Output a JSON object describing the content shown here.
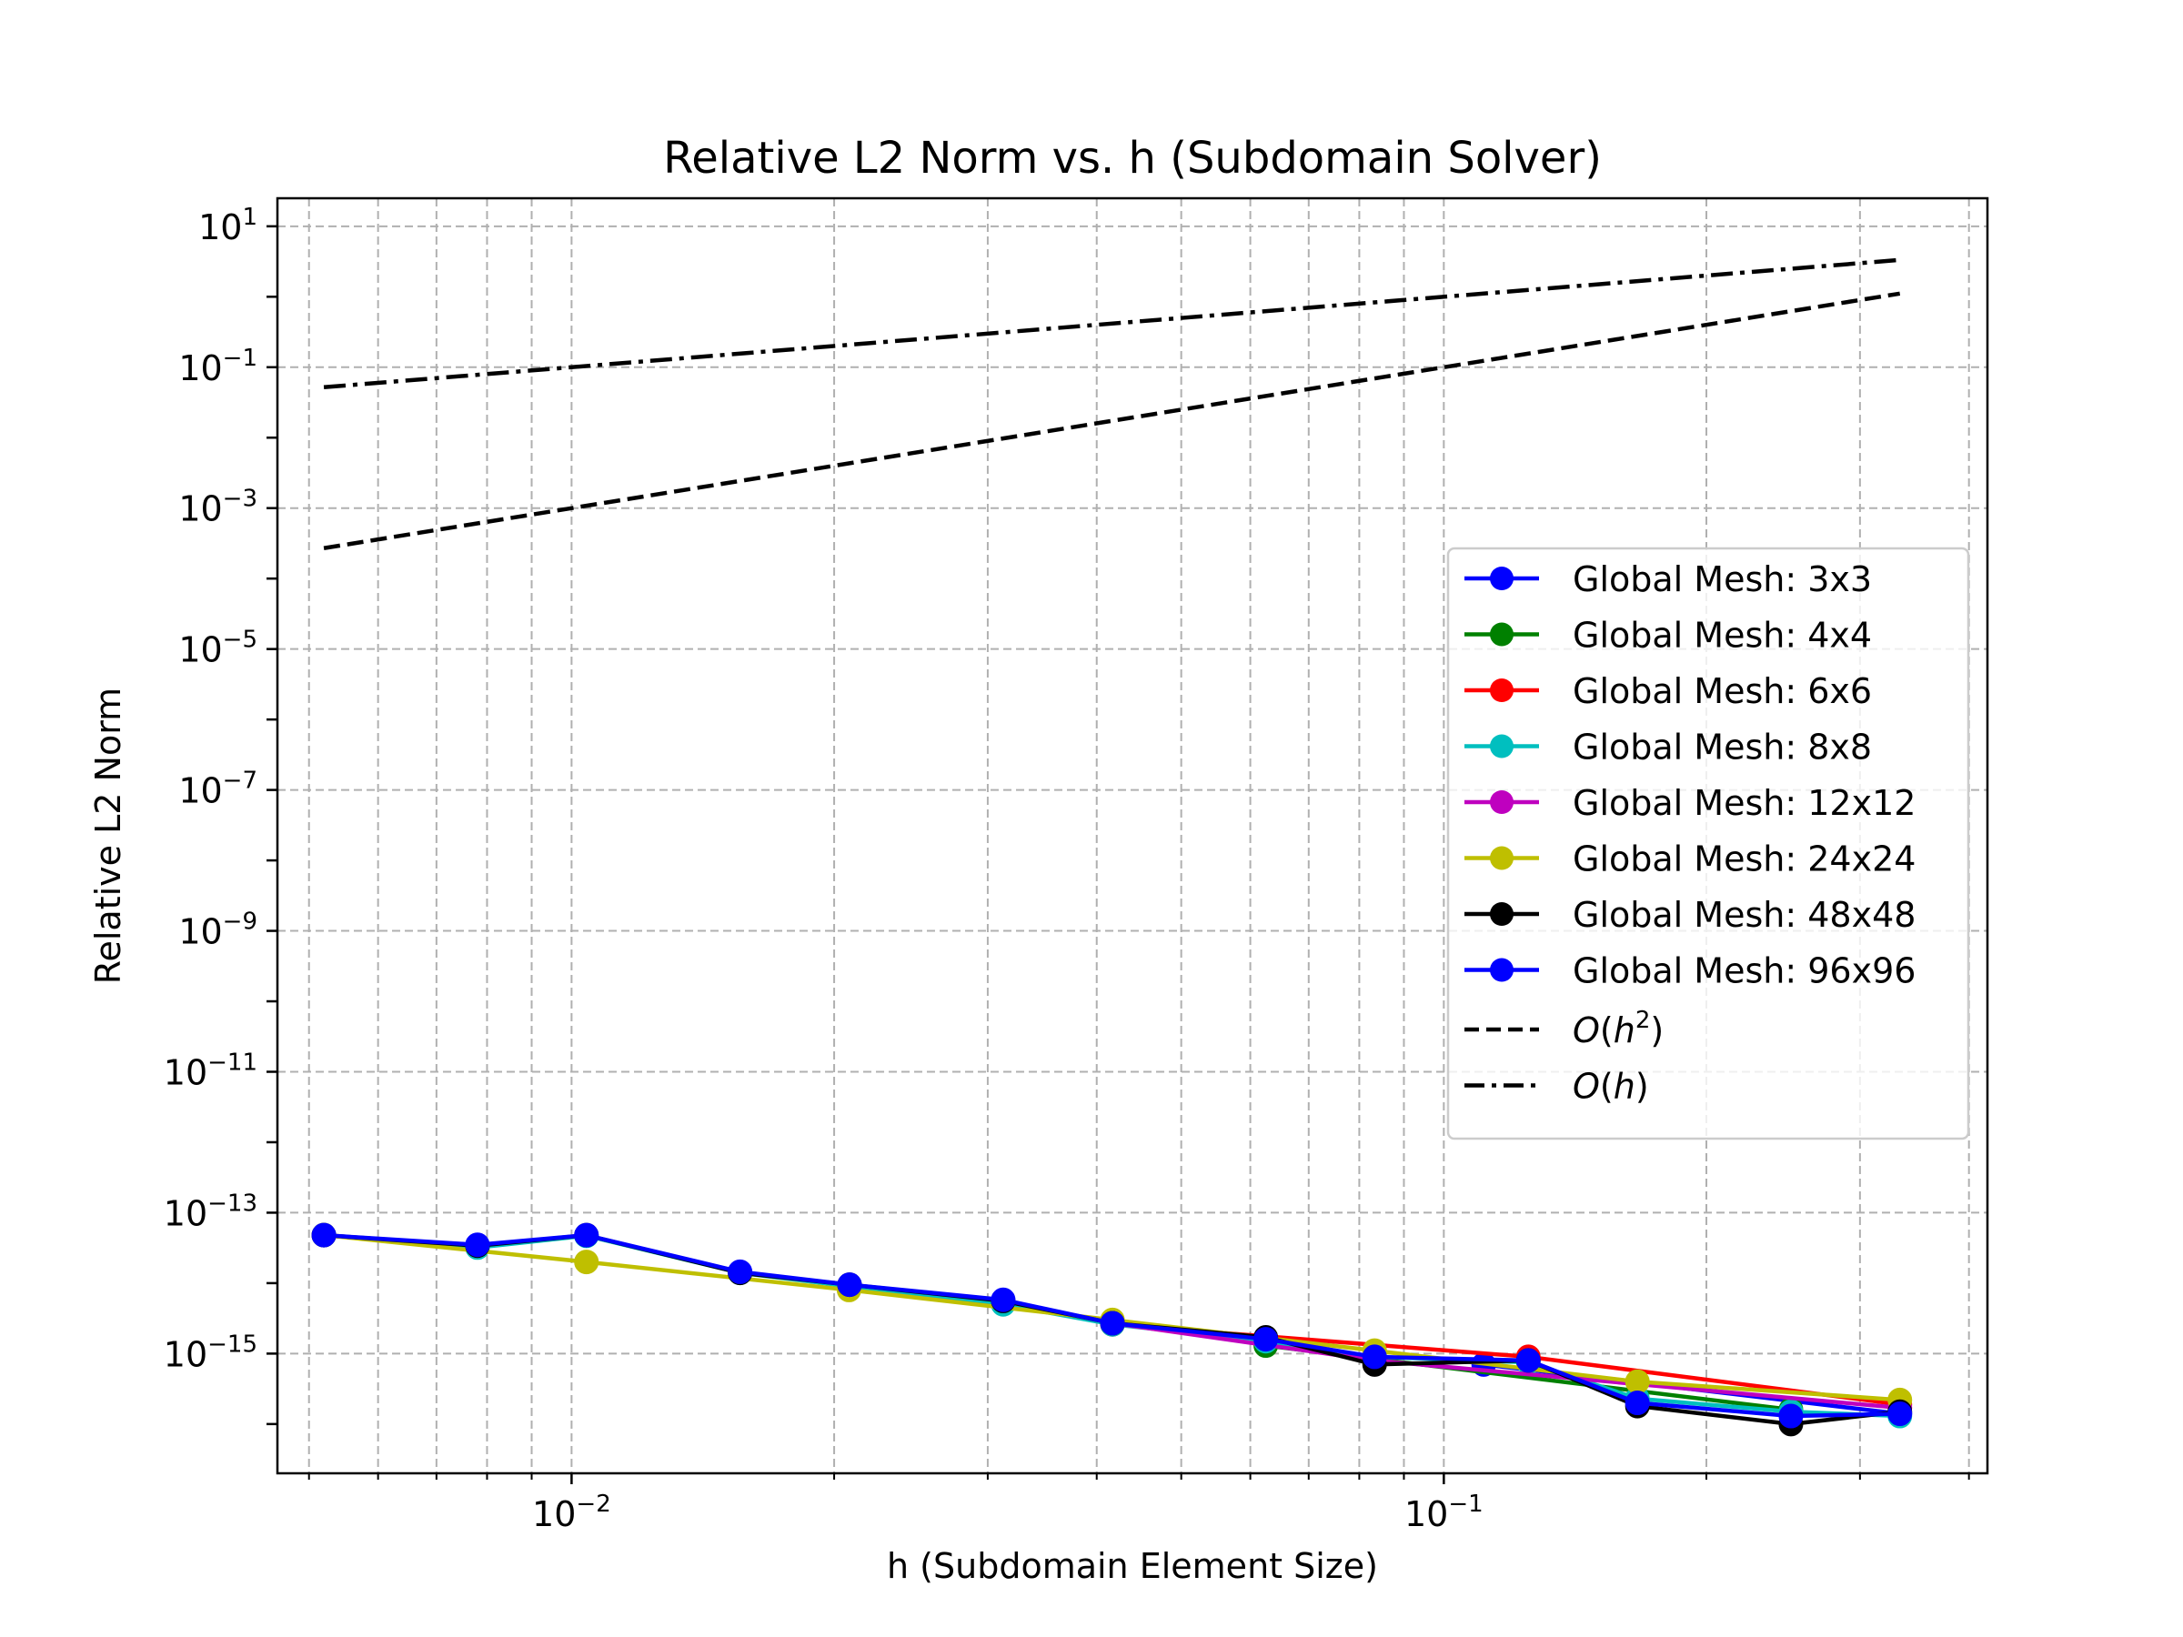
{
  "chart_data": {
    "type": "line",
    "title": "Relative L2 Norm vs. h (Subdomain Solver)",
    "xlabel": "h (Subdomain Element Size)",
    "ylabel": "Relative L2 Norm",
    "xscale": "log",
    "yscale": "log",
    "xlim": [
      0.0046,
      0.42
    ],
    "ylim": [
      2e-17,
      25
    ],
    "x_ticks": [
      {
        "base": "10",
        "exp": "−2",
        "value": 0.01
      },
      {
        "base": "10",
        "exp": "−1",
        "value": 0.1
      }
    ],
    "y_ticks": [
      {
        "base": "10",
        "exp": "1",
        "value": 10
      },
      {
        "base": "10",
        "exp": "−1",
        "value": 0.1
      },
      {
        "base": "10",
        "exp": "−3",
        "value": 0.001
      },
      {
        "base": "10",
        "exp": "−5",
        "value": 1e-05
      },
      {
        "base": "10",
        "exp": "−7",
        "value": 1e-07
      },
      {
        "base": "10",
        "exp": "−9",
        "value": 1e-09
      },
      {
        "base": "10",
        "exp": "−11",
        "value": 1e-11
      },
      {
        "base": "10",
        "exp": "−13",
        "value": 1e-13
      },
      {
        "base": "10",
        "exp": "−15",
        "value": 1e-15
      }
    ],
    "grid": true,
    "legend_position": "center-right",
    "series": [
      {
        "name": "Global Mesh: 3x3",
        "color": "#0000ff",
        "style": "solid",
        "marker": "o",
        "x": [
          0.3333,
          0.1111
        ],
        "y": [
          1.4e-16,
          7e-16
        ]
      },
      {
        "name": "Global Mesh: 4x4",
        "color": "#008000",
        "style": "solid",
        "marker": "o",
        "x": [
          0.25,
          0.0625
        ],
        "y": [
          1.6e-16,
          1.3e-15
        ]
      },
      {
        "name": "Global Mesh: 6x6",
        "color": "#ff0000",
        "style": "solid",
        "marker": "o",
        "x": [
          0.3333,
          0.125,
          0.0417
        ],
        "y": [
          1.9e-16,
          9e-16,
          2.6e-15
        ]
      },
      {
        "name": "Global Mesh: 8x8",
        "color": "#00bfbf",
        "style": "solid",
        "marker": "o",
        "x": [
          0.3333,
          0.25,
          0.1667,
          0.125,
          0.0833,
          0.0625,
          0.0417,
          0.03125,
          0.02083,
          0.0156,
          0.0104,
          0.0078,
          0.0052
        ],
        "y": [
          1.3e-16,
          1.5e-16,
          2.3e-16,
          7.5e-16,
          9e-16,
          1.5e-15,
          2.6e-15,
          5e-15,
          9e-15,
          1.4e-14,
          4.7e-14,
          3.2e-14,
          4.8e-14
        ]
      },
      {
        "name": "Global Mesh: 12x12",
        "color": "#bf00bf",
        "style": "solid",
        "marker": "o",
        "x": [
          0.3333,
          0.0833,
          0.0417
        ],
        "y": [
          1.7e-16,
          8e-16,
          2.7e-15
        ]
      },
      {
        "name": "Global Mesh: 24x24",
        "color": "#bfbf00",
        "style": "solid",
        "marker": "o",
        "x": [
          0.3333,
          0.1667,
          0.0833,
          0.0417,
          0.0208,
          0.0104,
          0.0052
        ],
        "y": [
          2.2e-16,
          4e-16,
          1.1e-15,
          3e-15,
          8e-15,
          2e-14,
          4.8e-14
        ]
      },
      {
        "name": "Global Mesh: 48x48",
        "color": "#000000",
        "style": "solid",
        "marker": "o",
        "x": [
          0.3333,
          0.25,
          0.1667,
          0.125,
          0.0833,
          0.0625,
          0.0417,
          0.03125,
          0.02083,
          0.0156,
          0.0104,
          0.0078,
          0.0052
        ],
        "y": [
          1.5e-16,
          1e-16,
          1.8e-16,
          8e-16,
          7e-16,
          1.7e-15,
          2.7e-15,
          5.6e-15,
          9.5e-15,
          1.4e-14,
          4.8e-14,
          3.4e-14,
          4.8e-14
        ]
      },
      {
        "name": "Global Mesh: 96x96",
        "color": "#0000ff",
        "style": "solid",
        "marker": "o",
        "x": [
          0.3333,
          0.25,
          0.1667,
          0.125,
          0.0833,
          0.0625,
          0.0417,
          0.03125,
          0.02083,
          0.0156,
          0.0104,
          0.0078,
          0.0052
        ],
        "y": [
          1.4e-16,
          1.3e-16,
          2e-16,
          8e-16,
          9e-16,
          1.6e-15,
          2.7e-15,
          5.8e-15,
          9.5e-15,
          1.45e-14,
          4.8e-14,
          3.5e-14,
          4.8e-14
        ]
      },
      {
        "name": "O(h²)",
        "label_main": "O",
        "label_arg": "h",
        "label_sup": "2",
        "color": "#000000",
        "style": "dashed",
        "marker": "none",
        "x": [
          0.0052,
          0.3333
        ],
        "y": [
          0.00027,
          1.11
        ]
      },
      {
        "name": "O(h)",
        "label_main": "O",
        "label_arg": "h",
        "label_sup": "",
        "color": "#000000",
        "style": "dashdot",
        "marker": "none",
        "x": [
          0.0052,
          0.3333
        ],
        "y": [
          0.052,
          3.33
        ]
      }
    ]
  }
}
